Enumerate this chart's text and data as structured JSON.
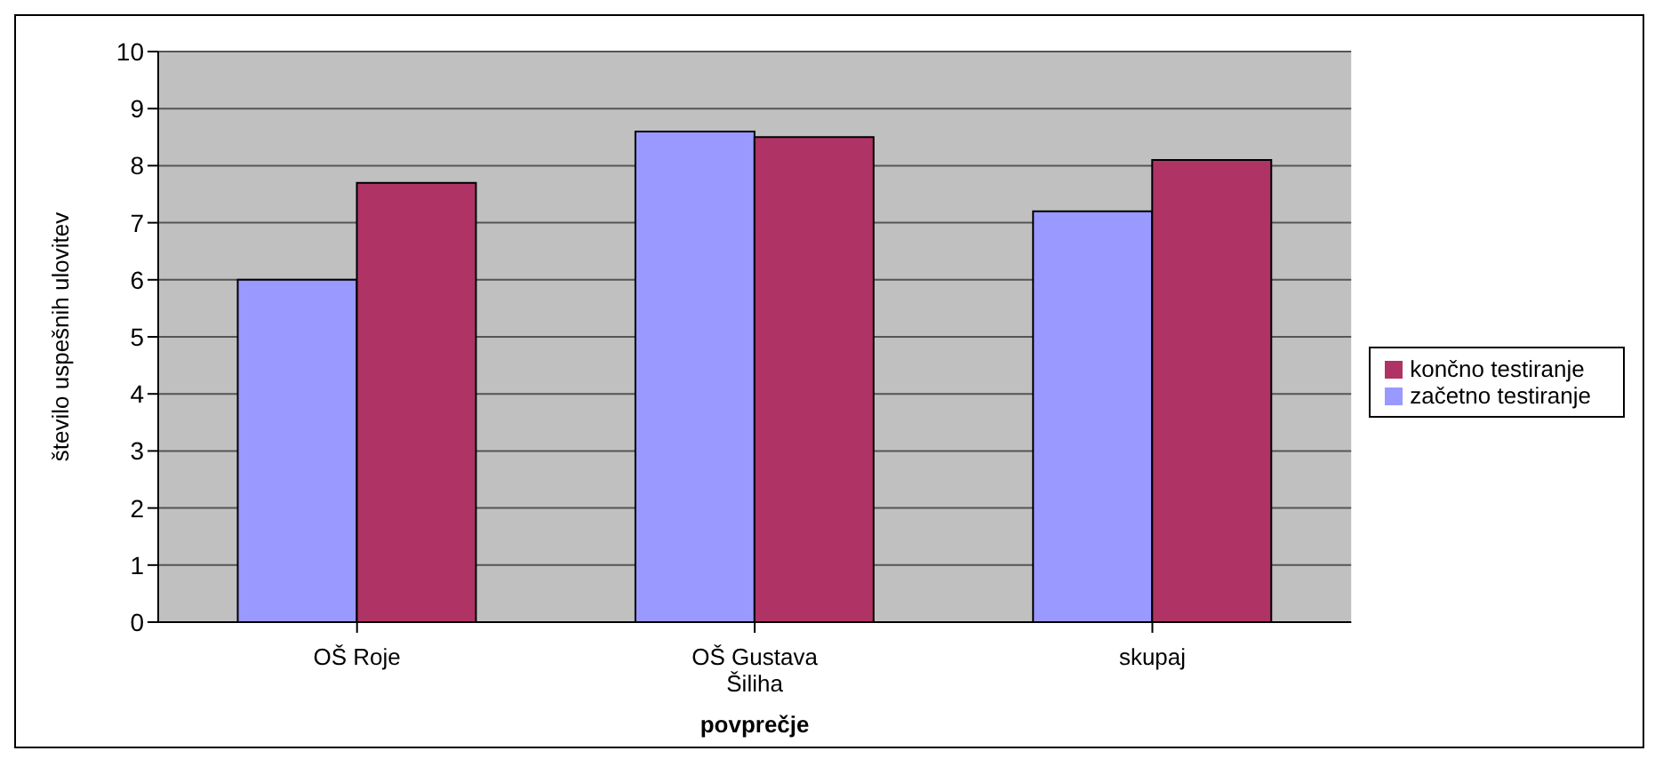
{
  "chart_data": {
    "type": "bar",
    "xlabel": "povprečje",
    "ylabel": "število uspešnih ulovitev",
    "categories": [
      "OŠ Roje",
      "OŠ Gustava Šiliha",
      "skupaj"
    ],
    "series": [
      {
        "name": "začetno testiranje",
        "color": "#9999ff",
        "values": [
          6.0,
          8.6,
          7.2
        ]
      },
      {
        "name": "končno testiranje",
        "color": "#b03366",
        "values": [
          7.7,
          8.5,
          8.1
        ]
      }
    ],
    "ylim": [
      0,
      10
    ],
    "yticks": [
      0,
      1,
      2,
      3,
      4,
      5,
      6,
      7,
      8,
      9,
      10
    ],
    "grid": "y",
    "legend": "right"
  }
}
